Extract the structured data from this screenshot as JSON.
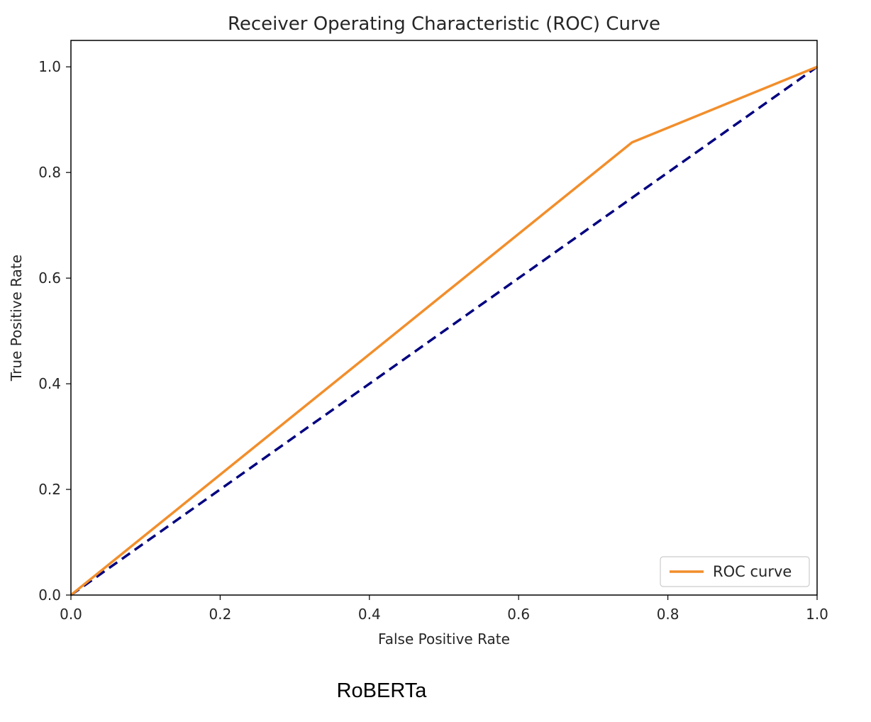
{
  "chart_data": {
    "type": "line",
    "title": "Receiver Operating Characteristic (ROC) Curve",
    "xlabel": "False Positive Rate",
    "ylabel": "True Positive Rate",
    "xlim": [
      0.0,
      1.0
    ],
    "ylim": [
      0.0,
      1.05
    ],
    "xticks": [
      "0.0",
      "0.2",
      "0.4",
      "0.6",
      "0.8",
      "1.0"
    ],
    "yticks": [
      "0.0",
      "0.2",
      "0.4",
      "0.6",
      "0.8",
      "1.0"
    ],
    "grid": false,
    "legend_position": "lower-right",
    "series": [
      {
        "name": "ROC curve",
        "color": "#f28e2b",
        "style": "solid",
        "x": [
          0.0,
          0.752,
          1.0
        ],
        "y": [
          0.0,
          0.857,
          1.0
        ]
      },
      {
        "color": "#000080",
        "style": "dashed",
        "x": [
          0.0,
          1.0
        ],
        "y": [
          0.0,
          1.0
        ]
      }
    ]
  },
  "caption": "RoBERTa"
}
